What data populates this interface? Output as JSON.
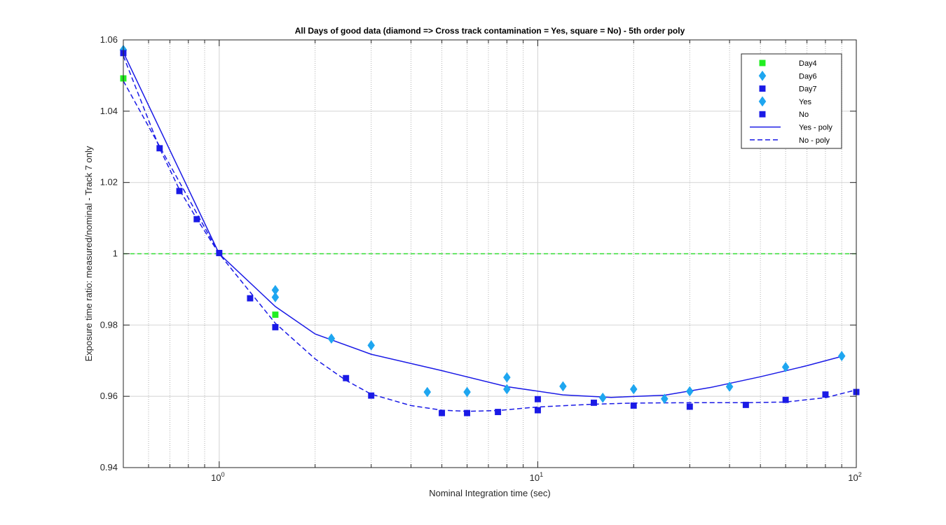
{
  "chart_data": {
    "type": "scatter",
    "title": "All Days of good data  (diamond => Cross track contamination = Yes, square = No) - 5th order poly",
    "xlabel": "Nominal Integration time (sec)",
    "ylabel": "Exposure time ratio: measured/nominal - Track 7  only",
    "xscale": "log",
    "xlim": [
      0.5,
      100
    ],
    "ylim": [
      0.94,
      1.06
    ],
    "x_ticks": [
      {
        "value": 1,
        "base": "10",
        "exp": "0"
      },
      {
        "value": 10,
        "base": "10",
        "exp": "1"
      },
      {
        "value": 100,
        "base": "10",
        "exp": "2"
      }
    ],
    "y_ticks": [
      {
        "value": 0.94,
        "label": "0.94"
      },
      {
        "value": 0.96,
        "label": "0.96"
      },
      {
        "value": 0.98,
        "label": "0.98"
      },
      {
        "value": 1.0,
        "label": "1"
      },
      {
        "value": 1.02,
        "label": "1.02"
      },
      {
        "value": 1.04,
        "label": "1.04"
      },
      {
        "value": 1.06,
        "label": "1.06"
      }
    ],
    "grid": true,
    "legend_position": "top-right",
    "reference_line": {
      "y": 1.0,
      "color": "#33e033",
      "style": "dashed"
    },
    "series": [
      {
        "name": "Day4",
        "marker": "square",
        "color": "#22ee22",
        "x": [
          0.5,
          1.5
        ],
        "y": [
          1.0492,
          0.9829
        ]
      },
      {
        "name": "Day6",
        "marker": "diamond",
        "color": "#1ea6f0",
        "x": [
          0.5,
          1.5,
          1.5,
          2.25,
          3.0,
          4.5,
          6.0,
          8.0,
          8.0,
          12.0,
          16.0,
          20.0,
          25.0,
          30.0,
          40.0,
          60.0,
          90.0
        ],
        "y": [
          1.0572,
          0.9898,
          0.9878,
          0.9762,
          0.9743,
          0.9612,
          0.9612,
          0.9653,
          0.962,
          0.9628,
          0.9596,
          0.962,
          0.9593,
          0.9614,
          0.9627,
          0.9682,
          0.9713
        ]
      },
      {
        "name": "Day7",
        "marker": "square",
        "color": "#1a1ae6",
        "x": [
          0.5,
          0.65,
          0.75,
          0.85,
          1.0,
          1.25,
          1.5,
          2.5,
          3.0,
          5.0,
          6.0,
          7.5,
          10.0,
          10.0,
          15.0,
          20.0,
          30.0,
          45.0,
          60.0,
          80.0,
          100.0
        ],
        "y": [
          1.0563,
          1.0296,
          1.0176,
          1.0097,
          1.0002,
          0.9875,
          0.9794,
          0.9651,
          0.9602,
          0.9553,
          0.9553,
          0.9556,
          0.9592,
          0.9561,
          0.9582,
          0.9574,
          0.9571,
          0.9576,
          0.959,
          0.9605,
          0.9612
        ]
      },
      {
        "name": "Yes",
        "marker": "diamond",
        "color": "#1ea6f0",
        "legend_only": true
      },
      {
        "name": "No",
        "marker": "square",
        "color": "#1a1ae6",
        "legend_only": true
      },
      {
        "name": "Yes - poly",
        "type": "line",
        "style": "solid",
        "color": "#1a1ae6",
        "x": [
          0.5,
          1.0,
          1.5,
          2.0,
          3.0,
          5.0,
          8.0,
          12.0,
          17.0,
          25.0,
          35.0,
          50.0,
          70.0,
          90.0
        ],
        "y": [
          1.0565,
          1.0,
          0.9852,
          0.9775,
          0.9718,
          0.9672,
          0.9627,
          0.9604,
          0.9597,
          0.9603,
          0.9625,
          0.9655,
          0.9686,
          0.9712
        ]
      },
      {
        "name": "No - poly",
        "type": "line",
        "style": "dashed",
        "color": "#1a1ae6",
        "x": [
          0.5,
          1.0,
          1.5,
          2.0,
          2.5,
          3.0,
          4.0,
          5.0,
          6.0,
          7.5,
          10.0,
          15.0,
          20.0,
          30.0,
          45.0,
          60.0,
          80.0,
          100.0
        ],
        "y": [
          1.0485,
          1.0,
          0.9805,
          0.9705,
          0.9645,
          0.9606,
          0.9574,
          0.9561,
          0.9558,
          0.956,
          0.957,
          0.9578,
          0.9581,
          0.9582,
          0.9582,
          0.9584,
          0.9596,
          0.9618
        ]
      }
    ],
    "extra_lines": [
      {
        "note": "second dashed fit branch near x<1",
        "style": "dashed",
        "color": "#1a1ae6",
        "x": [
          0.5,
          0.65,
          0.75,
          0.85,
          1.0
        ],
        "y": [
          1.0555,
          1.0296,
          1.018,
          1.0098,
          1.0
        ]
      }
    ]
  }
}
